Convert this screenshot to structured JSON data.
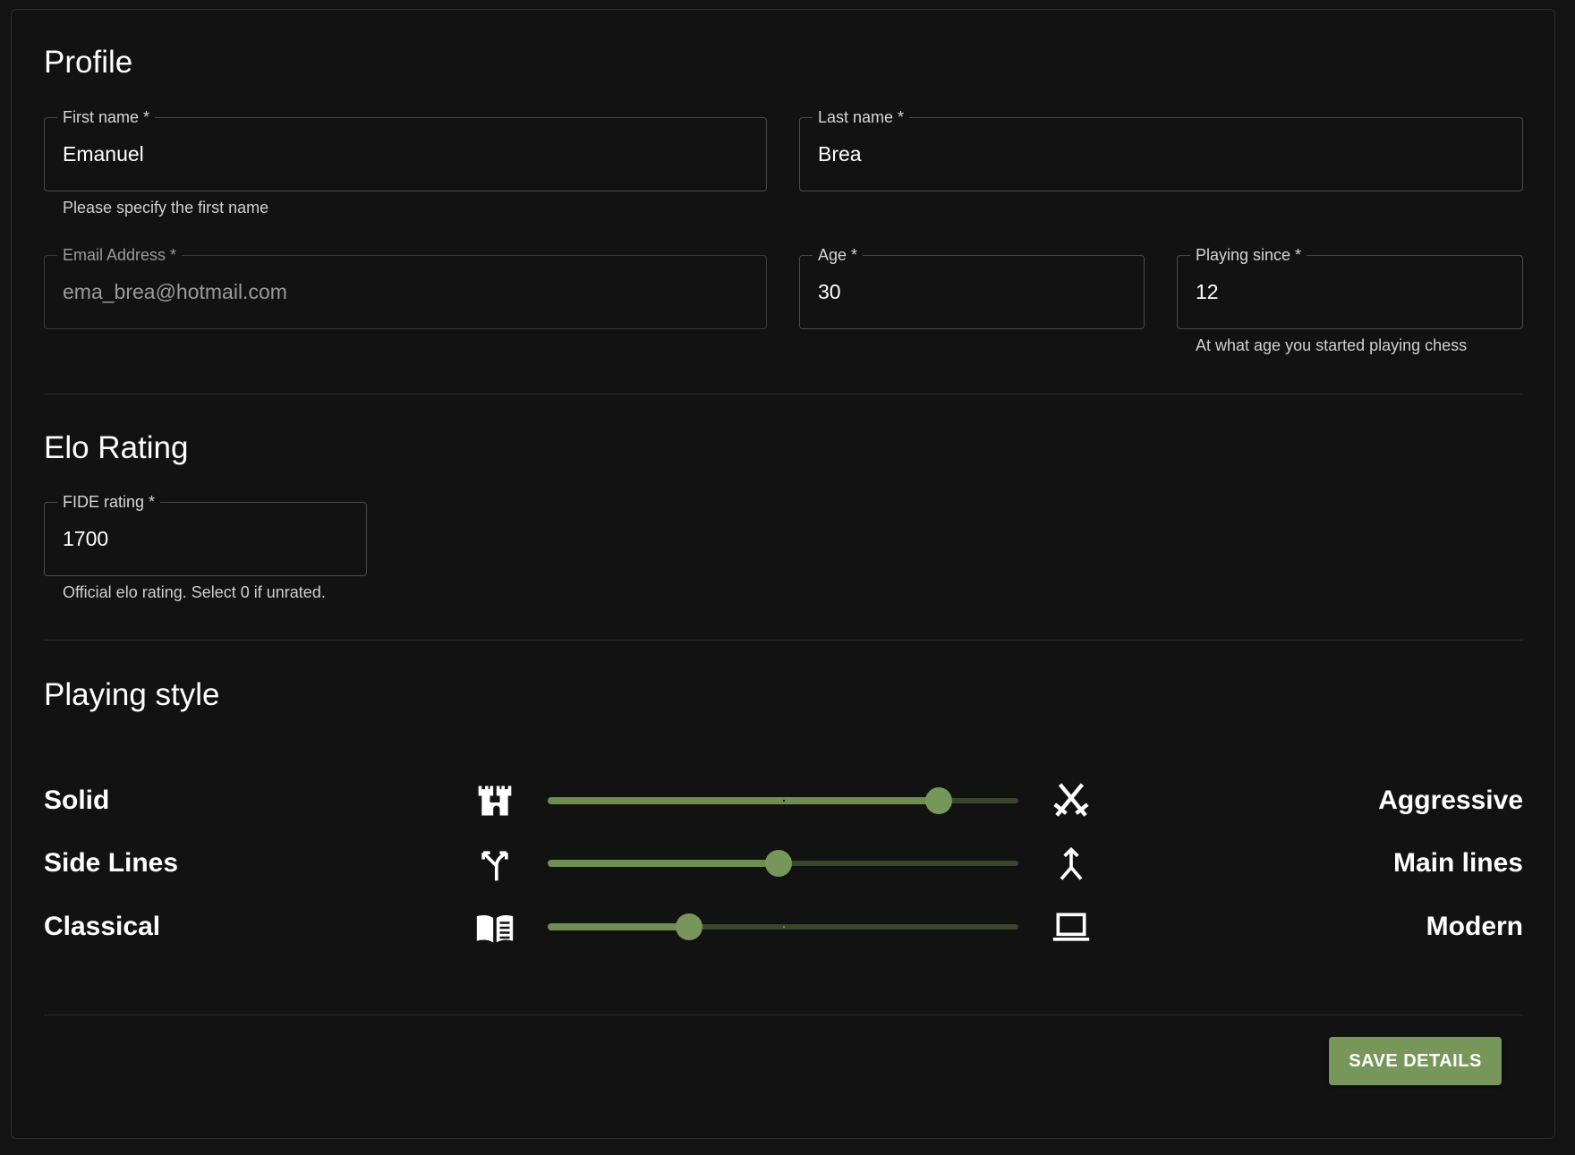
{
  "profile": {
    "title": "Profile",
    "first_name": {
      "label": "First name *",
      "value": "Emanuel",
      "helper": "Please specify the first name"
    },
    "last_name": {
      "label": "Last name *",
      "value": "Brea"
    },
    "email": {
      "label": "Email Address *",
      "value": "ema_brea@hotmail.com",
      "disabled": true
    },
    "age": {
      "label": "Age *",
      "value": "30"
    },
    "playing_since": {
      "label": "Playing since *",
      "value": "12",
      "helper": "At what age you started playing chess"
    }
  },
  "elo": {
    "title": "Elo Rating",
    "fide": {
      "label": "FIDE rating *",
      "value": "1700",
      "helper": "Official elo rating. Select 0 if unrated."
    }
  },
  "style": {
    "title": "Playing style",
    "sliders": [
      {
        "left_label": "Solid",
        "right_label": "Aggressive",
        "left_icon": "castle-icon",
        "right_icon": "crossed-swords-icon",
        "value_percent": 83
      },
      {
        "left_label": "Side Lines",
        "right_label": "Main lines",
        "left_icon": "split-arrows-icon",
        "right_icon": "merge-arrow-icon",
        "value_percent": 49
      },
      {
        "left_label": "Classical",
        "right_label": "Modern",
        "left_icon": "book-icon",
        "right_icon": "laptop-icon",
        "value_percent": 30
      }
    ]
  },
  "actions": {
    "save_label": "SAVE DETAILS"
  },
  "colors": {
    "accent": "#77975a",
    "track_fill": "#6f8d51",
    "track_rest": "#38472b",
    "background": "#121212"
  }
}
